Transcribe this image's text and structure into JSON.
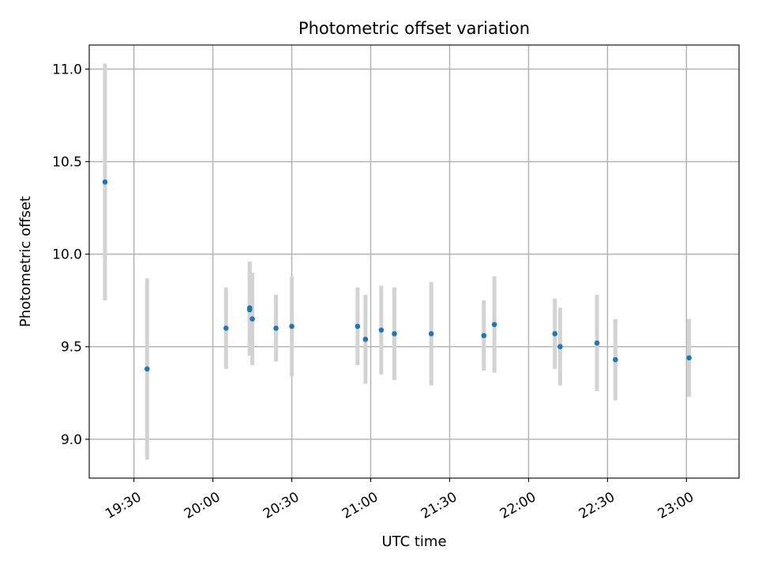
{
  "chart_data": {
    "type": "scatter",
    "title": "Photometric offset variation",
    "xlabel": "UTC time",
    "ylabel": "Photometric offset",
    "grid": true,
    "xlim": [
      "19:13",
      "23:20"
    ],
    "ylim": [
      8.79,
      11.13
    ],
    "x_ticks": [
      "19:30",
      "20:00",
      "20:30",
      "21:00",
      "21:30",
      "22:00",
      "22:30",
      "23:00"
    ],
    "y_ticks": [
      "9.0",
      "9.5",
      "10.0",
      "10.5",
      "11.0"
    ],
    "colors": {
      "points": "#1f77b4",
      "errorbars": "#d3d3d3",
      "grid": "#b0b0b0"
    },
    "series": [
      {
        "x": [
          "19:19",
          "19:35",
          "20:05",
          "20:14",
          "20:14",
          "20:15",
          "20:24",
          "20:30",
          "20:55",
          "20:58",
          "21:04",
          "21:09",
          "21:23",
          "21:43",
          "21:47",
          "22:10",
          "22:12",
          "22:26",
          "22:33",
          "23:01"
        ],
        "y": [
          10.39,
          9.38,
          9.6,
          9.71,
          9.7,
          9.65,
          9.6,
          9.61,
          9.61,
          9.54,
          9.59,
          9.57,
          9.57,
          9.56,
          9.62,
          9.57,
          9.5,
          9.52,
          9.43,
          9.44
        ],
        "yerr": [
          0.64,
          0.49,
          0.22,
          0.25,
          0.25,
          0.25,
          0.18,
          0.27,
          0.21,
          0.24,
          0.24,
          0.25,
          0.28,
          0.19,
          0.26,
          0.19,
          0.21,
          0.26,
          0.22,
          0.21
        ]
      }
    ]
  }
}
